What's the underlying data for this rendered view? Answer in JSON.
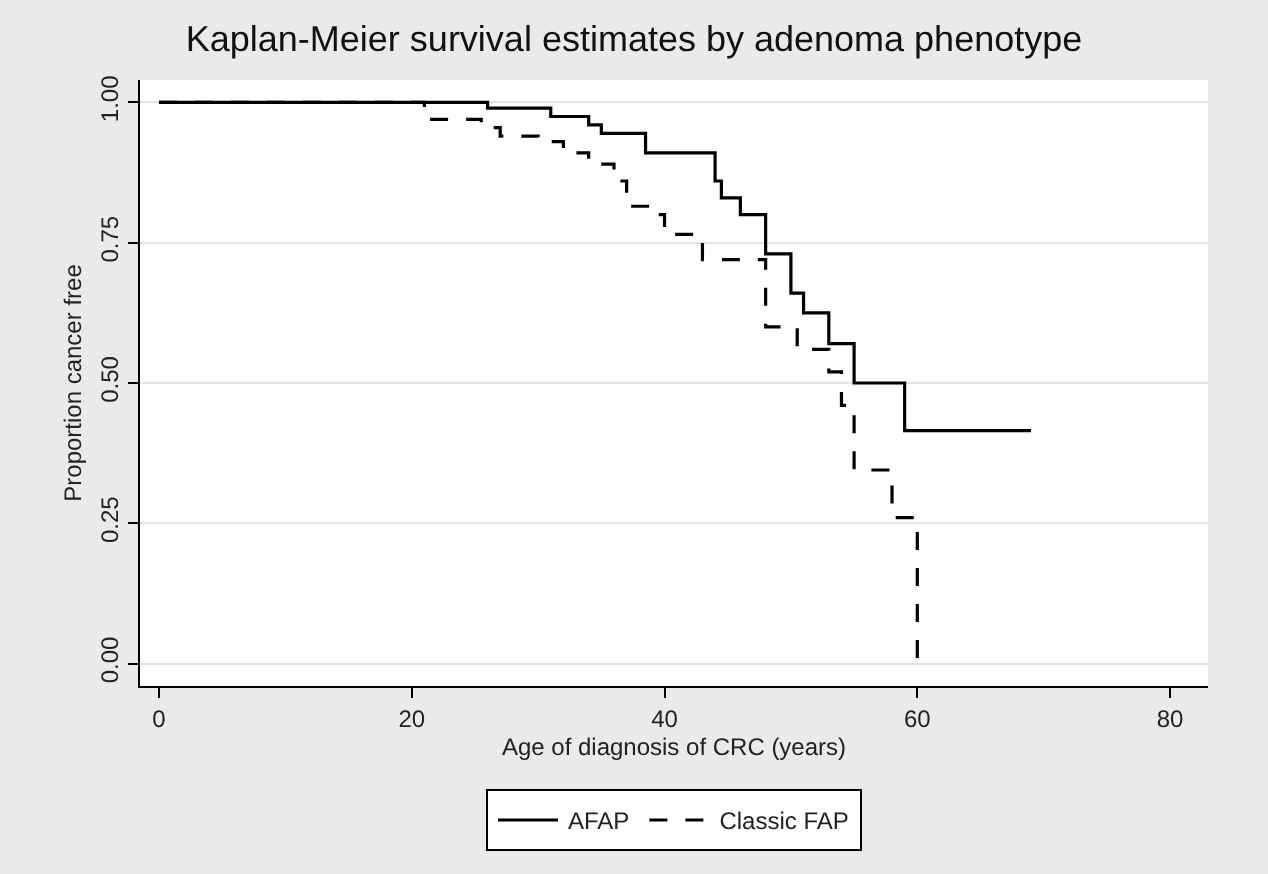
{
  "chart_data": {
    "type": "step",
    "title": "Kaplan-Meier survival estimates by adenoma phenotype",
    "xlabel": "Age of diagnosis of CRC (years)",
    "ylabel": "Proportion cancer free",
    "series": [
      {
        "name": "AFAP",
        "color": "#000000",
        "line_style": "solid",
        "x": [
          0,
          26,
          31,
          34,
          35,
          38.5,
          44,
          44.5,
          46,
          48,
          50,
          51,
          53,
          55,
          59,
          69
        ],
        "values": [
          1,
          0.99,
          0.975,
          0.96,
          0.945,
          0.91,
          0.86,
          0.83,
          0.8,
          0.73,
          0.66,
          0.625,
          0.57,
          0.5,
          0.415,
          0.415
        ]
      },
      {
        "name": "Classic FAP",
        "color": "#000000",
        "line_style": "dashed",
        "x": [
          0,
          21,
          25.5,
          27,
          30,
          32,
          34,
          36,
          37,
          39,
          40,
          43,
          48,
          50.5,
          53,
          54,
          55,
          58,
          60,
          60
        ],
        "values": [
          1,
          0.97,
          0.955,
          0.94,
          0.93,
          0.91,
          0.89,
          0.86,
          0.815,
          0.8,
          0.765,
          0.72,
          0.6,
          0.56,
          0.52,
          0.46,
          0.345,
          0.26,
          0.26,
          0
        ]
      }
    ],
    "xlim": [
      -1.5,
      83
    ],
    "xticks": [
      0,
      20,
      40,
      60,
      80
    ],
    "ylim": [
      -0.04,
      1.04
    ],
    "yticks": [
      {
        "value": 0,
        "label": "0.00"
      },
      {
        "value": 0.25,
        "label": "0.25"
      },
      {
        "value": 0.5,
        "label": "0.50"
      },
      {
        "value": 0.75,
        "label": "0.75"
      },
      {
        "value": 1,
        "label": "1.00"
      }
    ],
    "grid": "y",
    "legend": "bottom",
    "marker": "none"
  }
}
